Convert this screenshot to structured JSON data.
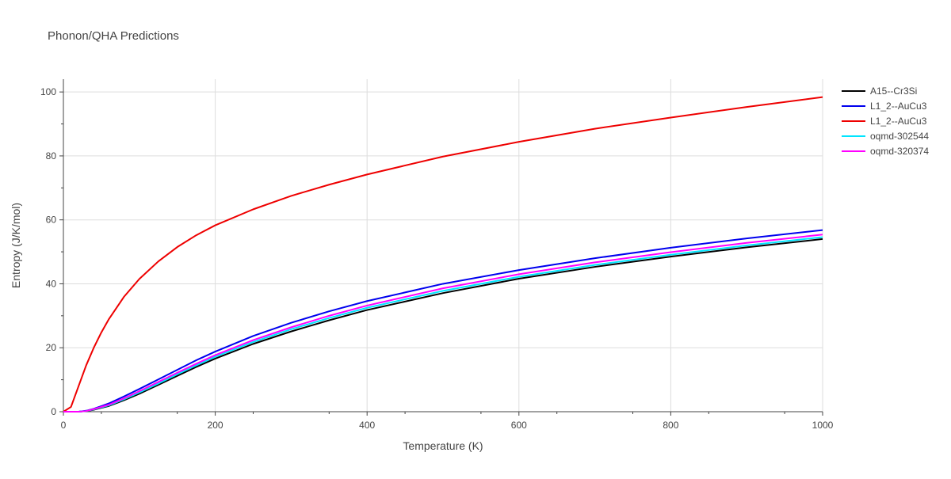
{
  "chart_data": {
    "type": "line",
    "title": "Phonon/QHA Predictions",
    "xlabel": "Temperature (K)",
    "ylabel": "Entropy (J/K/mol)",
    "xlim": [
      0,
      1000
    ],
    "ylim": [
      0,
      104
    ],
    "x_ticks": [
      0,
      200,
      400,
      600,
      800,
      1000
    ],
    "y_ticks": [
      0,
      20,
      40,
      60,
      80,
      100
    ],
    "grid": true,
    "legend_position": "right",
    "series": [
      {
        "name": "A15--Cr3Si",
        "color": "#000000",
        "points": [
          [
            0,
            0
          ],
          [
            20,
            0
          ],
          [
            30,
            0.2
          ],
          [
            40,
            0.6
          ],
          [
            60,
            1.8
          ],
          [
            80,
            3.6
          ],
          [
            100,
            5.6
          ],
          [
            125,
            8.4
          ],
          [
            150,
            11.2
          ],
          [
            175,
            14.0
          ],
          [
            200,
            16.6
          ],
          [
            250,
            21.2
          ],
          [
            300,
            25.1
          ],
          [
            350,
            28.6
          ],
          [
            400,
            31.8
          ],
          [
            500,
            37.1
          ],
          [
            600,
            41.6
          ],
          [
            700,
            45.3
          ],
          [
            800,
            48.5
          ],
          [
            900,
            51.4
          ],
          [
            1000,
            54.0
          ]
        ]
      },
      {
        "name": "L1_2--AuCu3",
        "color": "#0000ee",
        "points": [
          [
            0,
            0
          ],
          [
            20,
            0
          ],
          [
            30,
            0.3
          ],
          [
            40,
            0.9
          ],
          [
            60,
            2.6
          ],
          [
            80,
            4.8
          ],
          [
            100,
            7.1
          ],
          [
            125,
            10.1
          ],
          [
            150,
            13.1
          ],
          [
            175,
            16.1
          ],
          [
            200,
            18.8
          ],
          [
            250,
            23.7
          ],
          [
            300,
            27.8
          ],
          [
            350,
            31.4
          ],
          [
            400,
            34.6
          ],
          [
            500,
            40.0
          ],
          [
            600,
            44.3
          ],
          [
            700,
            48.0
          ],
          [
            800,
            51.3
          ],
          [
            900,
            54.2
          ],
          [
            1000,
            56.8
          ]
        ]
      },
      {
        "name": "L1_2--AuCu3",
        "color": "#ee0000",
        "points": [
          [
            0,
            0
          ],
          [
            10,
            1.5
          ],
          [
            20,
            8.0
          ],
          [
            30,
            14.5
          ],
          [
            40,
            20.0
          ],
          [
            50,
            24.8
          ],
          [
            60,
            29.0
          ],
          [
            80,
            36.0
          ],
          [
            100,
            41.5
          ],
          [
            125,
            47.0
          ],
          [
            150,
            51.5
          ],
          [
            175,
            55.2
          ],
          [
            200,
            58.3
          ],
          [
            250,
            63.3
          ],
          [
            300,
            67.5
          ],
          [
            350,
            71.0
          ],
          [
            400,
            74.2
          ],
          [
            500,
            79.8
          ],
          [
            600,
            84.4
          ],
          [
            700,
            88.5
          ],
          [
            800,
            92.0
          ],
          [
            900,
            95.3
          ],
          [
            1000,
            98.4
          ]
        ]
      },
      {
        "name": "oqmd-302544",
        "color": "#00e5ff",
        "points": [
          [
            0,
            0
          ],
          [
            20,
            0
          ],
          [
            30,
            0.2
          ],
          [
            40,
            0.7
          ],
          [
            60,
            2.0
          ],
          [
            80,
            3.9
          ],
          [
            100,
            6.0
          ],
          [
            125,
            8.8
          ],
          [
            150,
            11.7
          ],
          [
            175,
            14.5
          ],
          [
            200,
            17.2
          ],
          [
            250,
            21.8
          ],
          [
            300,
            25.8
          ],
          [
            350,
            29.3
          ],
          [
            400,
            32.5
          ],
          [
            500,
            37.8
          ],
          [
            600,
            42.2
          ],
          [
            700,
            45.9
          ],
          [
            800,
            49.1
          ],
          [
            900,
            52.0
          ],
          [
            1000,
            54.6
          ]
        ]
      },
      {
        "name": "oqmd-320374",
        "color": "#ff00ff",
        "points": [
          [
            0,
            0
          ],
          [
            20,
            0
          ],
          [
            30,
            0.2
          ],
          [
            40,
            0.8
          ],
          [
            60,
            2.2
          ],
          [
            80,
            4.2
          ],
          [
            100,
            6.4
          ],
          [
            125,
            9.3
          ],
          [
            150,
            12.2
          ],
          [
            175,
            15.0
          ],
          [
            200,
            17.7
          ],
          [
            250,
            22.4
          ],
          [
            300,
            26.4
          ],
          [
            350,
            30.0
          ],
          [
            400,
            33.2
          ],
          [
            500,
            38.6
          ],
          [
            600,
            43.0
          ],
          [
            700,
            46.7
          ],
          [
            800,
            49.9
          ],
          [
            900,
            52.8
          ],
          [
            1000,
            55.4
          ]
        ]
      }
    ]
  }
}
